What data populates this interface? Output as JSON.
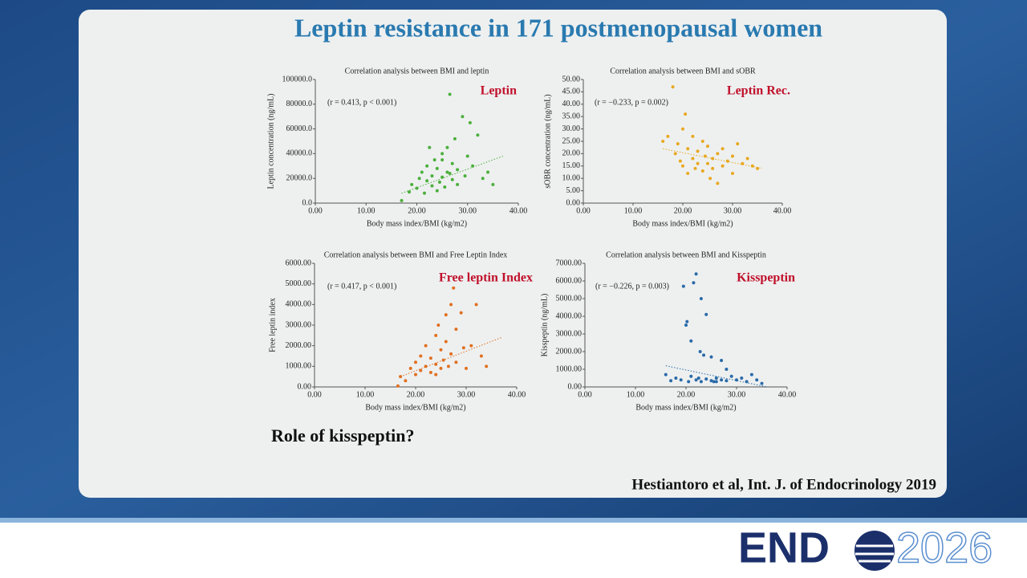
{
  "slide": {
    "title": "Leptin resistance in 171 postmenopausal women",
    "question": "Role of kisspeptin?",
    "citation": "Hestiantoro et al, Int. J. of Endocrinology  2019",
    "logo": [
      "END",
      "2026"
    ]
  },
  "chart_data": [
    {
      "type": "scatter",
      "title": "Correlation analysis between BMI and leptin",
      "x_label": "Body mass index/BMI (kg/m2)",
      "y_label": "Leptin concentration (ng/mL)",
      "annotation": "(r = 0.413, p < 0.001)",
      "label_color": "#c0102a",
      "xlim": [
        0,
        40
      ],
      "xticks": [
        {
          "value": 0,
          "label": "0.00"
        },
        {
          "value": 10,
          "label": "10.00"
        },
        {
          "value": 20,
          "label": "20.00"
        },
        {
          "value": 30,
          "label": "30.00"
        },
        {
          "value": 40,
          "label": "40.00"
        }
      ],
      "ylim": [
        0,
        100000
      ],
      "yticks": [
        {
          "value": 0,
          "label": "0.0"
        },
        {
          "value": 20000,
          "label": "20000.0"
        },
        {
          "value": 40000,
          "label": "40000.0"
        },
        {
          "value": 60000,
          "label": "60000.0"
        },
        {
          "value": 80000,
          "label": "80000.0"
        },
        {
          "value": 100000,
          "label": "100000.0"
        }
      ],
      "x": [
        17,
        18.5,
        19,
        20,
        20.5,
        21,
        21.5,
        22,
        22,
        23,
        23,
        23.5,
        24,
        24,
        24.5,
        25,
        25,
        25.5,
        26,
        26,
        26.5,
        27,
        27,
        27.5,
        28,
        28,
        29,
        29.5,
        30,
        31,
        32,
        33,
        34,
        35,
        26.5,
        30.5,
        22.5,
        25
      ],
      "series": [
        {
          "name": "Leptin",
          "color": "#4caf3c",
          "values": [
            2000,
            9000,
            15000,
            12000,
            20000,
            25000,
            8000,
            18000,
            30000,
            14000,
            22000,
            35000,
            10000,
            28000,
            17000,
            40000,
            21000,
            13000,
            45000,
            25000,
            88000,
            19000,
            32000,
            52000,
            15000,
            27000,
            70000,
            22000,
            38000,
            30000,
            55000,
            20000,
            25000,
            15000,
            24000,
            65000,
            45000,
            35000
          ]
        }
      ],
      "trendline": {
        "x": [
          17,
          37
        ],
        "y": [
          8000,
          38000
        ]
      }
    },
    {
      "type": "scatter",
      "title": "Correlation analysis between BMI and sOBR",
      "x_label": "Body mass index/BMI (kg/m2)",
      "y_label": "sOBR concentration (ng/mL)",
      "annotation": "(r = −0.233, p = 0.002)",
      "label_color": "#c0102a",
      "xlim": [
        0,
        40
      ],
      "xticks": [
        {
          "value": 0,
          "label": "0.00"
        },
        {
          "value": 10,
          "label": "10.00"
        },
        {
          "value": 20,
          "label": "20.00"
        },
        {
          "value": 30,
          "label": "30.00"
        },
        {
          "value": 40,
          "label": "40.00"
        }
      ],
      "ylim": [
        0,
        50
      ],
      "yticks": [
        {
          "value": 0,
          "label": "0.00"
        },
        {
          "value": 5,
          "label": "5.00"
        },
        {
          "value": 10,
          "label": "10.00"
        },
        {
          "value": 15,
          "label": "15.00"
        },
        {
          "value": 20,
          "label": "20.00"
        },
        {
          "value": 25,
          "label": "25.00"
        },
        {
          "value": 30,
          "label": "30.00"
        },
        {
          "value": 35,
          "label": "35.00"
        },
        {
          "value": 40,
          "label": "40.00"
        },
        {
          "value": 45,
          "label": "45.00"
        },
        {
          "value": 50,
          "label": "50.00"
        }
      ],
      "x": [
        16,
        17,
        18,
        18.5,
        19,
        19.5,
        20,
        20,
        21,
        21,
        22,
        22,
        22.5,
        23,
        23,
        24,
        24,
        24.5,
        25,
        25,
        25.5,
        26,
        26,
        27,
        27,
        28,
        28,
        29,
        30,
        30,
        31,
        32,
        33,
        34,
        35,
        20.5
      ],
      "series": [
        {
          "name": "Leptin Rec.",
          "color": "#e8a820",
          "values": [
            25,
            27,
            47,
            20,
            24,
            17,
            30,
            15,
            22,
            12,
            27,
            18,
            14,
            21,
            16,
            25,
            13,
            19,
            23,
            16,
            10,
            18,
            14,
            20,
            8,
            22,
            15,
            17,
            19,
            12,
            24,
            16,
            18,
            15,
            14,
            36
          ]
        }
      ],
      "trendline": {
        "x": [
          16,
          36
        ],
        "y": [
          22,
          14
        ]
      }
    },
    {
      "type": "scatter",
      "title": "Correlation analysis between BMI and Free Leptin Index",
      "x_label": "Body mass index/BMI (kg/m2)",
      "y_label": "Free leptin index",
      "annotation": "(r = 0.417, p < 0.001)",
      "label_color": "#c0102a",
      "xlim": [
        0,
        40
      ],
      "xticks": [
        {
          "value": 0,
          "label": "0.00"
        },
        {
          "value": 10,
          "label": "10.00"
        },
        {
          "value": 20,
          "label": "20.00"
        },
        {
          "value": 30,
          "label": "30.00"
        },
        {
          "value": 40,
          "label": "40.00"
        }
      ],
      "ylim": [
        0,
        6000
      ],
      "yticks": [
        {
          "value": 0,
          "label": "0.00"
        },
        {
          "value": 1000,
          "label": "1000.00"
        },
        {
          "value": 2000,
          "label": "2000.00"
        },
        {
          "value": 3000,
          "label": "3000.00"
        },
        {
          "value": 4000,
          "label": "4000.00"
        },
        {
          "value": 5000,
          "label": "5000.00"
        },
        {
          "value": 6000,
          "label": "6000.00"
        }
      ],
      "x": [
        16.5,
        17,
        18,
        19,
        20,
        20,
        21,
        21,
        22,
        22,
        23,
        23,
        24,
        24,
        24.5,
        25,
        25,
        25.5,
        26,
        26,
        26.5,
        27,
        27,
        28,
        28,
        29,
        29.5,
        30,
        31,
        32,
        33,
        34,
        24,
        27.5
      ],
      "series": [
        {
          "name": "Free leptin Index",
          "color": "#e07020",
          "values": [
            50,
            500,
            300,
            900,
            1200,
            600,
            1500,
            800,
            1000,
            2000,
            700,
            1400,
            2500,
            1100,
            3000,
            900,
            1800,
            1300,
            3500,
            2200,
            1000,
            4000,
            1600,
            2800,
            1200,
            3600,
            1900,
            900,
            2000,
            4000,
            1500,
            1000,
            600,
            4800
          ]
        }
      ],
      "trendline": {
        "x": [
          17,
          37
        ],
        "y": [
          500,
          2400
        ]
      }
    },
    {
      "type": "scatter",
      "title": "Correlation analysis between BMI and Kisspeptin",
      "x_label": "Body mass index/BMI (kg/m2)",
      "y_label": "Kisspeptin (ng/mL)",
      "annotation": "(r = −0.226, p = 0.003)",
      "label_color": "#c0102a",
      "xlim": [
        0,
        40
      ],
      "xticks": [
        {
          "value": 0,
          "label": "0.00"
        },
        {
          "value": 10,
          "label": "10.00"
        },
        {
          "value": 20,
          "label": "20.00"
        },
        {
          "value": 30,
          "label": "30.00"
        },
        {
          "value": 40,
          "label": "40.00"
        }
      ],
      "ylim": [
        0,
        7000
      ],
      "yticks": [
        {
          "value": 0,
          "label": "0.00"
        },
        {
          "value": 1000,
          "label": "1000.00"
        },
        {
          "value": 2000,
          "label": "2000.00"
        },
        {
          "value": 3000,
          "label": "3000.00"
        },
        {
          "value": 4000,
          "label": "4000.00"
        },
        {
          "value": 5000,
          "label": "5000.00"
        },
        {
          "value": 6000,
          "label": "6000.00"
        },
        {
          "value": 7000,
          "label": "7000.00"
        }
      ],
      "x": [
        16,
        17,
        18,
        19,
        19.5,
        20,
        20.5,
        21,
        21,
        22,
        22,
        22.5,
        23,
        23,
        23.5,
        24,
        24,
        25,
        25,
        26,
        26,
        27,
        27,
        28,
        28,
        29,
        30,
        31,
        32,
        33,
        34,
        35,
        20.2,
        21.5,
        22.8,
        25.5
      ],
      "series": [
        {
          "name": "Kisspeptin",
          "color": "#2a6aa8",
          "values": [
            700,
            350,
            500,
            400,
            5700,
            3500,
            300,
            600,
            2600,
            6400,
            400,
            500,
            5000,
            300,
            1800,
            450,
            4100,
            350,
            1700,
            500,
            300,
            1500,
            400,
            350,
            1000,
            600,
            400,
            500,
            300,
            700,
            400,
            200,
            3700,
            5900,
            2000,
            300
          ]
        }
      ],
      "trendline": {
        "x": [
          16,
          36
        ],
        "y": [
          1200,
          0
        ]
      }
    }
  ]
}
